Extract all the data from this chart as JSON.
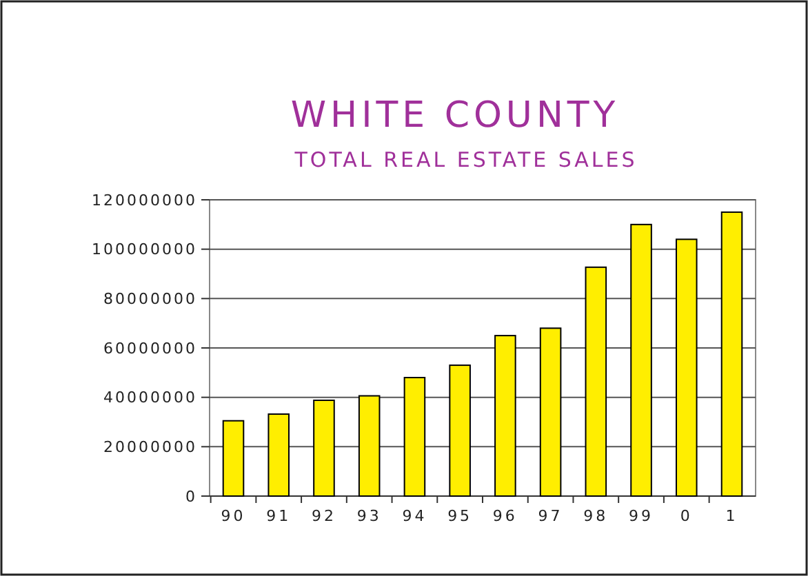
{
  "chart_data": {
    "type": "bar",
    "title": "WHITE COUNTY",
    "subtitle": "TOTAL REAL ESTATE SALES",
    "categories": [
      "90",
      "91",
      "92",
      "93",
      "94",
      "95",
      "96",
      "97",
      "98",
      "99",
      "0",
      "1"
    ],
    "values": [
      30500000,
      33200000,
      38800000,
      40600000,
      48000000,
      53000000,
      65000000,
      68000000,
      92700000,
      110000000,
      104000000,
      115000000
    ],
    "color": "#ffee00",
    "ylim": [
      0,
      120000000
    ],
    "yticks": [
      0,
      20000000,
      40000000,
      60000000,
      80000000,
      100000000,
      120000000
    ],
    "grid": "y"
  }
}
